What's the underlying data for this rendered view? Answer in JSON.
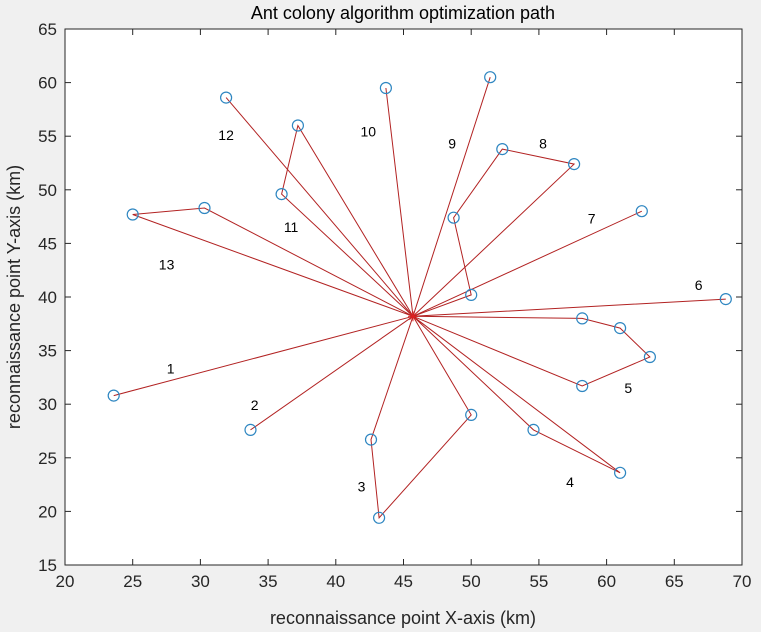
{
  "chart_data": {
    "type": "line",
    "title": "Ant colony algorithm optimization path",
    "xlabel": "reconnaissance point X-axis (km)",
    "ylabel": "reconnaissance point Y-axis (km)",
    "xlim": [
      20,
      70
    ],
    "ylim": [
      15,
      65
    ],
    "xticks": [
      "20",
      "25",
      "30",
      "35",
      "40",
      "45",
      "50",
      "55",
      "60",
      "65",
      "70"
    ],
    "yticks": [
      "15",
      "20",
      "25",
      "30",
      "35",
      "40",
      "45",
      "50",
      "55",
      "60",
      "65"
    ],
    "grid": false,
    "colors": {
      "path": "#b22222",
      "marker": "#2e86c1",
      "center": "#e02020"
    },
    "center": [
      45.7,
      38.2
    ],
    "routes": [
      {
        "label": "1",
        "label_pos": [
          27.8,
          33.2
        ],
        "points": [
          [
            23.6,
            30.8
          ]
        ]
      },
      {
        "label": "2",
        "label_pos": [
          34.0,
          29.8
        ],
        "points": [
          [
            33.7,
            27.6
          ]
        ]
      },
      {
        "label": "3",
        "label_pos": [
          41.9,
          22.2
        ],
        "points": [
          [
            42.6,
            26.7
          ],
          [
            43.2,
            19.4
          ],
          [
            50.0,
            29.0
          ]
        ]
      },
      {
        "label": "4",
        "label_pos": [
          57.3,
          22.6
        ],
        "points": [
          [
            54.6,
            27.6
          ],
          [
            61.0,
            23.6
          ]
        ]
      },
      {
        "label": "5",
        "label_pos": [
          61.6,
          31.4
        ],
        "points": [
          [
            58.2,
            31.7
          ],
          [
            63.2,
            34.4
          ],
          [
            61.0,
            37.1
          ],
          [
            58.2,
            38.0
          ]
        ]
      },
      {
        "label": "6",
        "label_pos": [
          66.8,
          41.0
        ],
        "points": [
          [
            68.8,
            39.8
          ]
        ]
      },
      {
        "label": "7",
        "label_pos": [
          58.9,
          47.2
        ],
        "points": [
          [
            62.6,
            48.0
          ]
        ]
      },
      {
        "label": "8",
        "label_pos": [
          55.3,
          54.2
        ],
        "points": [
          [
            50.0,
            40.2
          ],
          [
            48.7,
            47.4
          ],
          [
            52.3,
            53.8
          ],
          [
            57.6,
            52.4
          ]
        ]
      },
      {
        "label": "9",
        "label_pos": [
          48.6,
          54.2
        ],
        "points": [
          [
            51.4,
            60.5
          ]
        ]
      },
      {
        "label": "10",
        "label_pos": [
          42.4,
          55.3
        ],
        "points": [
          [
            43.7,
            59.5
          ]
        ]
      },
      {
        "label": "11",
        "label_pos": [
          36.7,
          46.4
        ],
        "points": [
          [
            36.0,
            49.6
          ],
          [
            37.2,
            56.0
          ]
        ]
      },
      {
        "label": "12",
        "label_pos": [
          31.9,
          55.0
        ],
        "points": [
          [
            31.9,
            58.6
          ]
        ]
      },
      {
        "label": "13",
        "label_pos": [
          27.5,
          42.9
        ],
        "points": [
          [
            30.3,
            48.3
          ],
          [
            25.0,
            47.7
          ]
        ]
      }
    ]
  }
}
